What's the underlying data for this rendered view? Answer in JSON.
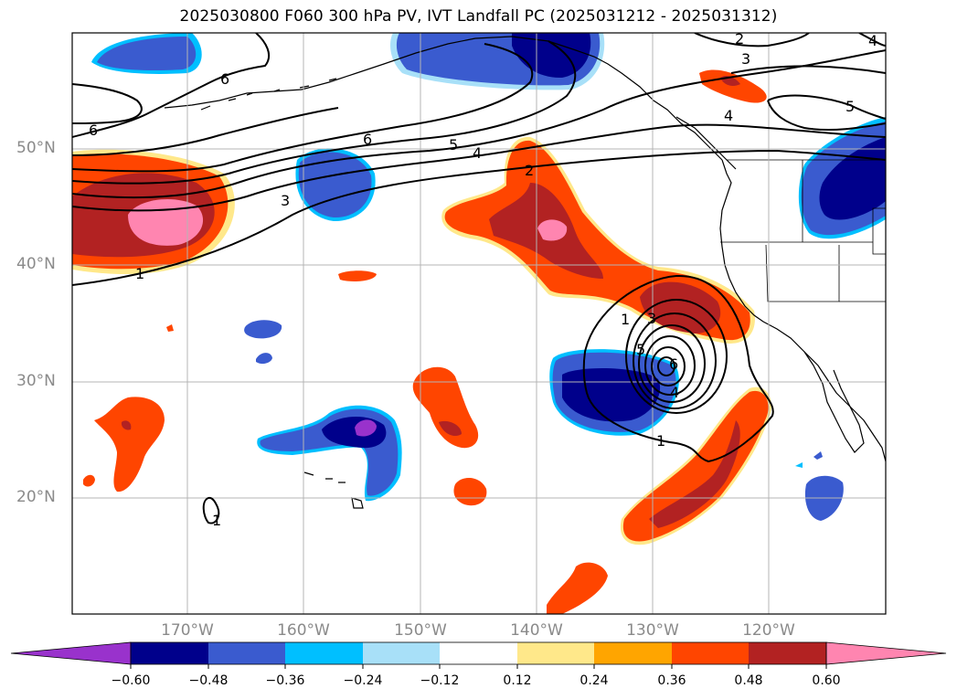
{
  "title": "2025030800 F060 300 hPa PV, IVT Landfall PC (2025031212 - 2025031312)",
  "map": {
    "lon_range": [
      -180,
      -110
    ],
    "lat_range": [
      10,
      60
    ],
    "gridlines": true,
    "lat_labels": [
      "50°N",
      "40°N",
      "30°N",
      "20°N"
    ],
    "lon_labels": [
      "170°W",
      "160°W",
      "150°W",
      "140°W",
      "130°W",
      "120°W"
    ]
  },
  "contour_labels": [
    "2",
    "3",
    "4",
    "5",
    "6",
    "6",
    "6",
    "6",
    "5",
    "4",
    "3",
    "2",
    "1",
    "4",
    "5",
    "1",
    "3",
    "5",
    "6",
    "4",
    "1",
    "1"
  ],
  "colorbar": {
    "ticks": [
      "−0.60",
      "−0.48",
      "−0.36",
      "−0.24",
      "−0.12",
      "0.12",
      "0.24",
      "0.36",
      "0.48",
      "0.60"
    ],
    "colors": [
      "#9932cc",
      "#00008b",
      "#3a5bcf",
      "#00bfff",
      "#a8e0f8",
      "#ffffff",
      "#ffe88a",
      "#ffa500",
      "#ff4500",
      "#b22222",
      "#ff85b0"
    ]
  },
  "colors": {
    "land_outline": "#000000",
    "grid": "#b4b4b4",
    "contour": "#000000"
  }
}
